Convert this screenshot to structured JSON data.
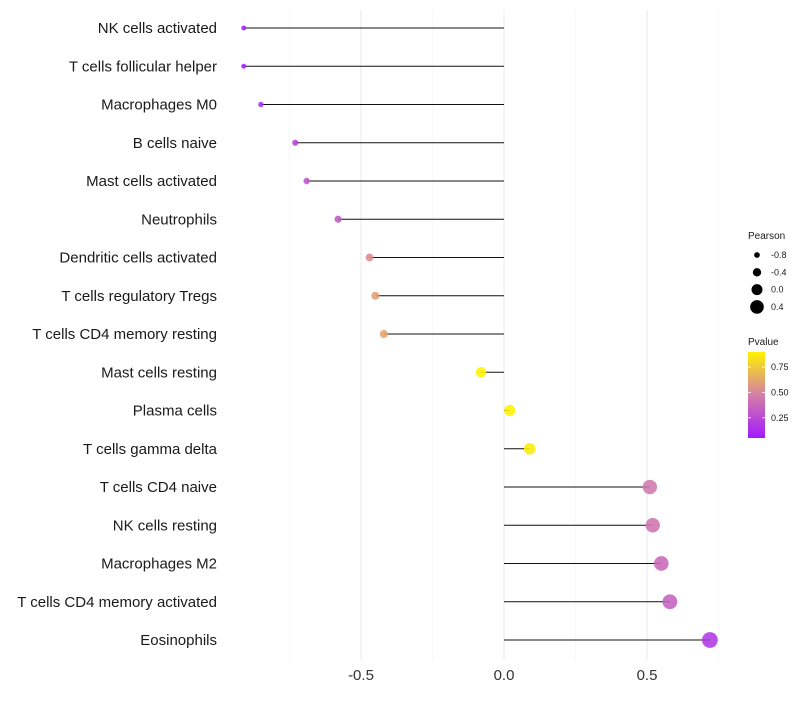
{
  "chart_data": {
    "type": "lollipop",
    "title": "",
    "xlabel": "",
    "ylabel": "",
    "xlim": [
      -1.0,
      0.77
    ],
    "x_ticks": [
      -0.5,
      0.0,
      0.5
    ],
    "x_tick_labels": [
      "-0.5",
      "0.0",
      "0.5"
    ],
    "grid": true,
    "legend_position": "right",
    "size_legend": {
      "title": "Pearson",
      "values": [
        -0.8,
        -0.4,
        0.0,
        0.4
      ],
      "labels": [
        "-0.8",
        "-0.4",
        "0.0",
        "0.4"
      ]
    },
    "color_legend": {
      "title": "Pvalue",
      "range": [
        0.05,
        0.9
      ],
      "ticks": [
        0.25,
        0.5,
        0.75
      ],
      "tick_labels": [
        "0.25",
        "0.50",
        "0.75"
      ],
      "low_color": "#a21aff",
      "mid_color": "#d47fa6",
      "high_color": "#fff200"
    },
    "categories": [
      "NK cells activated",
      "T cells follicular helper",
      "Macrophages M0",
      "B cells naive",
      "Mast cells activated",
      "Neutrophils",
      "Dendritic cells activated",
      "T cells regulatory  Tregs ",
      "T cells CD4 memory resting",
      "Mast cells resting",
      "Plasma cells",
      "T cells gamma delta",
      "T cells CD4 naive",
      "NK cells resting",
      "Macrophages M2",
      "T cells CD4 memory activated",
      "Eosinophils"
    ],
    "values": [
      -0.91,
      -0.91,
      -0.85,
      -0.73,
      -0.69,
      -0.58,
      -0.47,
      -0.45,
      -0.42,
      -0.08,
      0.02,
      0.09,
      0.51,
      0.52,
      0.55,
      0.58,
      0.72
    ],
    "pvalues": [
      0.08,
      0.08,
      0.12,
      0.22,
      0.3,
      0.32,
      0.52,
      0.6,
      0.62,
      0.9,
      0.92,
      0.88,
      0.45,
      0.43,
      0.38,
      0.35,
      0.18
    ]
  }
}
